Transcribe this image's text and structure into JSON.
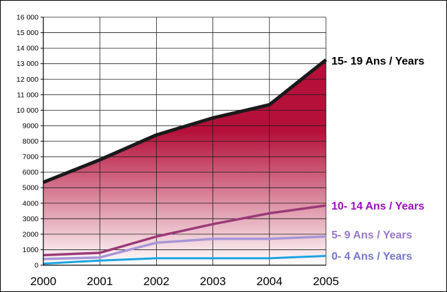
{
  "chart_data": {
    "type": "area",
    "x": [
      2000,
      2001,
      2002,
      2003,
      2004,
      2005
    ],
    "x_tick_labels": [
      "2000",
      "2001",
      "2002",
      "2003",
      "2004",
      "2005"
    ],
    "y_tick_labels": [
      "0",
      "1000",
      "2000",
      "3000",
      "4000",
      "5000",
      "6000",
      "7000",
      "8000",
      "9000",
      "10 000",
      "11 000",
      "12 000",
      "13 000",
      "14 000",
      "15 000",
      "16 000"
    ],
    "ylim": [
      0,
      16000
    ],
    "grid": true,
    "series": [
      {
        "name": "15- 19 Ans / Years",
        "values": [
          5350,
          6800,
          8400,
          9500,
          10350,
          13250
        ],
        "line_color": "#1a1a1a",
        "label_color": "#000000",
        "filled": true,
        "fill_top_color": "#b5103a",
        "fill_bottom_color": "#ffffff"
      },
      {
        "name": "10- 14 Ans / Years",
        "values": [
          650,
          800,
          1850,
          2650,
          3350,
          3850
        ],
        "line_color": "#9b3a78",
        "label_color": "#9b10bd",
        "filled": false
      },
      {
        "name": "5- 9 Ans / Years",
        "values": [
          400,
          500,
          1450,
          1700,
          1700,
          1850
        ],
        "line_color": "#a796d6",
        "label_color": "#9a77cc",
        "filled": false
      },
      {
        "name": "0- 4 Ans / Years",
        "values": [
          100,
          300,
          450,
          450,
          450,
          600
        ],
        "line_color": "#1aa3e0",
        "label_color": "#7777cc",
        "filled": false
      }
    ]
  }
}
